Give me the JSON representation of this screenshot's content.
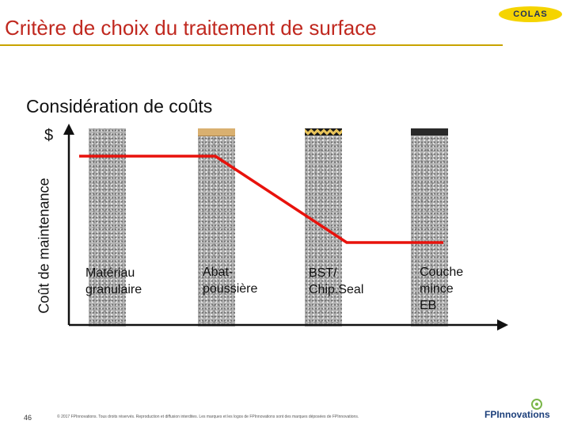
{
  "header": {
    "title": "Critère de choix du traitement de surface",
    "logo_text": "COLAS"
  },
  "subtitle": "Considération de coûts",
  "chart_data": {
    "type": "line",
    "ylabel": "Coût de maintenance",
    "ytick": "$",
    "categories": [
      "Matériau granulaire",
      "Abat-poussière",
      "BST/ Chip.Seal",
      "Couche mince EB"
    ],
    "category_labels": [
      "Matériau\ngranulaire",
      "Abat-\npoussière",
      "BST/\nChip.Seal",
      "Couche\nmince\nEB"
    ],
    "surface_layers": [
      "none",
      "dust-suppressant",
      "chip-seal",
      "asphalt"
    ],
    "series": [
      {
        "values": [
          3,
          3,
          1,
          1
        ],
        "color": "#e8120c"
      }
    ]
  },
  "footer": {
    "page_number": "46",
    "copyright": "© 2017 FPInnovations. Tous droits réservés. Reproduction et diffusion interdites. Les marques et les logos de FPInnovations sont des marques déposées de FPInnovations.",
    "brand": "FPInnovations"
  }
}
